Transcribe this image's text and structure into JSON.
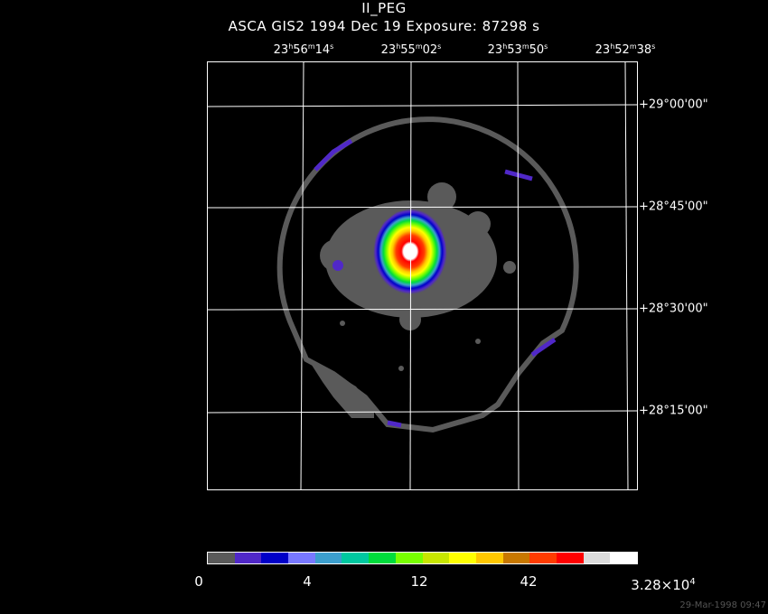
{
  "title": {
    "object": "II_PEG",
    "subtitle": "ASCA GIS2    1994 Dec 19    Exposure: 87298 s"
  },
  "ra_labels": [
    {
      "h": "23",
      "m": "56",
      "s": "14"
    },
    {
      "h": "23",
      "m": "55",
      "s": "02"
    },
    {
      "h": "23",
      "m": "53",
      "s": "50"
    },
    {
      "h": "23",
      "m": "52",
      "s": "38"
    }
  ],
  "dec_labels": [
    "+29°00'00\"",
    "+28°45'00\"",
    "+28°30'00\"",
    "+28°15'00\""
  ],
  "colorbar": {
    "colors": [
      "#5a5a5a",
      "#5028c8",
      "#0000c8",
      "#7878ff",
      "#3c9ecd",
      "#00c8a0",
      "#00dc3c",
      "#78ff00",
      "#c8e600",
      "#ffff00",
      "#ffc800",
      "#c87800",
      "#ff3c00",
      "#ff0000",
      "#dcdcdc",
      "#ffffff"
    ],
    "tick_labels": [
      "0",
      "4",
      "12",
      "42"
    ],
    "max_label_mantissa": "3.28×10",
    "max_label_exponent": "4"
  },
  "image_colors": {
    "background": "#000000",
    "grid": "#ffffff",
    "diffuse": "#5a5a5a",
    "source_core": "#ffffff"
  },
  "footer": "29-Mar-1998 09:47"
}
